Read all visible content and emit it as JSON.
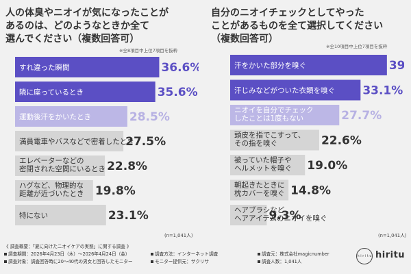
{
  "chart_data": [
    {
      "type": "bar",
      "question": "人の体臭やニオイが気になったことが\nあるのは、どのようなときか全て\n選んでください（複数回答可）",
      "note": "※全8項目中上位7項目を抜粋",
      "n_label": "(n=1,041人)",
      "categories": [
        [
          "すれ違った瞬間"
        ],
        [
          "隣に座っているとき"
        ],
        [
          "運動後汗をかいたとき"
        ],
        [
          "満員電車やバスなどで密着したとき"
        ],
        [
          "エレベーターなどの",
          "密閉された空間にいるとき"
        ],
        [
          "ハグなど、物理的な",
          "距離が近づいたとき"
        ],
        [
          "特にない"
        ]
      ],
      "values": [
        36.6,
        35.6,
        28.5,
        27.5,
        22.8,
        19.8,
        23.1
      ],
      "value_labels": [
        "36.6%",
        "35.6%",
        "28.5%",
        "27.5%",
        "22.8%",
        "19.8%",
        "23.1%"
      ],
      "xlim": [
        0,
        40
      ]
    },
    {
      "type": "bar",
      "question": "自分のニオイチェックとしてやった\nことがあるものを全て選択してください\n（複数回答可）",
      "note": "※全10項目中上位7項目を抜粋",
      "n_label": "(n=1,041人)",
      "categories": [
        [
          "汗をかいた部分を嗅ぐ"
        ],
        [
          "汗じみなどがついた衣類を嗅ぐ"
        ],
        [
          "ニオイを自分でチェック",
          "したことは1度もない"
        ],
        [
          "頭皮を指でこすって、",
          "その指を嗅ぐ"
        ],
        [
          "被っていた帽子や",
          "ヘルメットを嗅ぐ"
        ],
        [
          "朝起きたときに",
          "枕カバーを嗅ぐ"
        ],
        [
          "ヘアブラシなど",
          "ヘアアイテムのニオイを嗅ぐ"
        ]
      ],
      "values": [
        39.8,
        33.1,
        27.7,
        22.6,
        19.0,
        14.8,
        9.3
      ],
      "value_labels": [
        "39.8%",
        "33.1%",
        "27.7%",
        "22.6%",
        "19.0%",
        "14.8%",
        "9.3%"
      ],
      "xlim": [
        0,
        40
      ]
    }
  ],
  "colors": {
    "dark": "#5b4fc4",
    "light": "#bcb7e6",
    "gray": "#d5d5d5",
    "value_dark": "#5b4fc4",
    "value_light": "#b7b1e3",
    "value_gray": "#333333"
  },
  "footer": {
    "title": "《 調査概要：「夏に向けたニオイケアの実態」に関する調査 》",
    "period": "調査期間：2026年4月23日（木）〜2026年4月24日（金）",
    "method": "調査方法：インターネット調査",
    "sponsor": "調査元：株式会社magicnumber",
    "target": "調査対象：調査回答時に20〜40代の男女と回答したモニター",
    "provider": "モニター提供元：サクリサ",
    "count": "調査人数：1,041人"
  },
  "logo": {
    "text": "hiritu",
    "mark": "h i r i t u"
  }
}
